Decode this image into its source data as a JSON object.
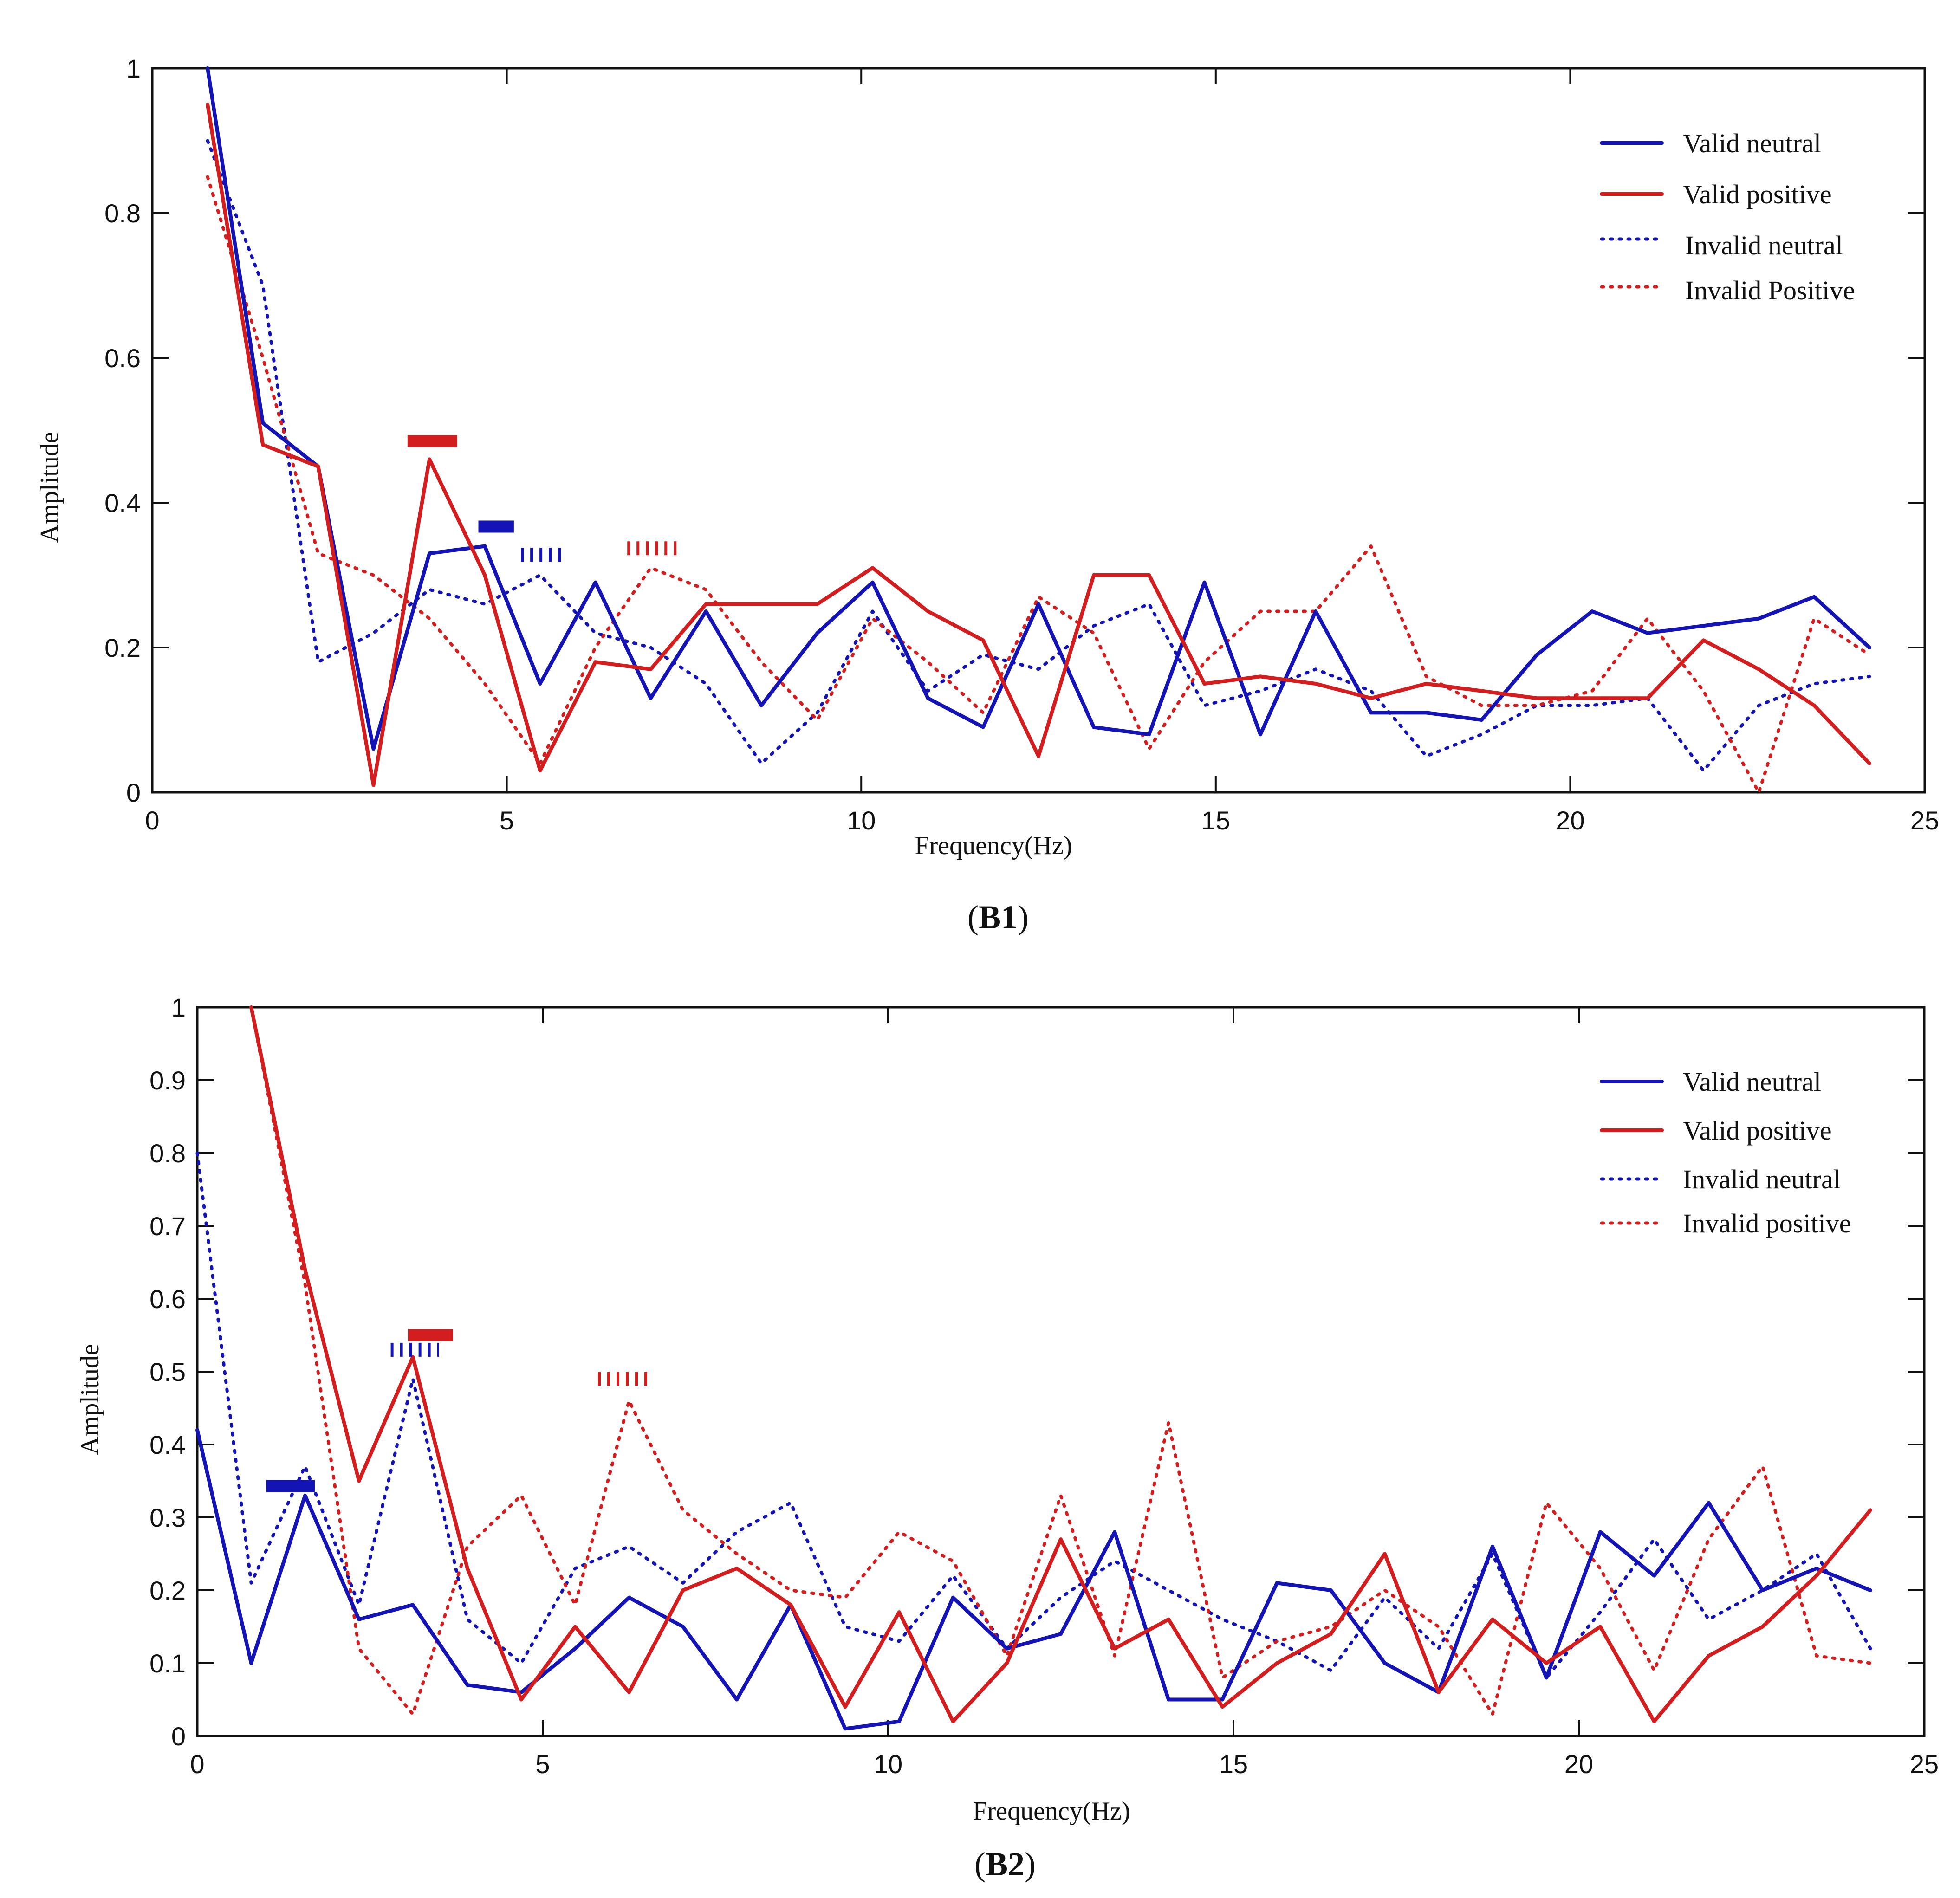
{
  "colors": {
    "blue": "#1414b4",
    "red": "#d21e1e",
    "axis": "#111111",
    "background": "#ffffff"
  },
  "chart_data": [
    {
      "type": "line",
      "panel": "B1",
      "caption": "B1",
      "xlabel": "Frequency(Hz)",
      "ylabel": "Amplitude",
      "xlim": [
        0,
        25
      ],
      "ylim": [
        0,
        1
      ],
      "xticks": [
        0,
        5,
        10,
        15,
        20,
        25
      ],
      "xtick_labels": [
        "0",
        "5",
        "10",
        "15",
        "20",
        "25"
      ],
      "yticks": [
        0,
        0.2,
        0.4,
        0.6,
        0.8,
        1
      ],
      "ytick_labels": [
        "0",
        "0.2",
        "0.4",
        "0.6",
        "0.8",
        "1"
      ],
      "grid": false,
      "legend_position": "top-right",
      "x": [
        0.78,
        1.56,
        2.34,
        3.12,
        3.91,
        4.69,
        5.47,
        6.25,
        7.03,
        7.81,
        8.59,
        9.38,
        10.16,
        10.94,
        11.72,
        12.5,
        13.28,
        14.06,
        14.84,
        15.63,
        16.41,
        17.19,
        17.97,
        18.75,
        19.53,
        20.31,
        21.09,
        21.88,
        22.66,
        23.44,
        24.22
      ],
      "series": [
        {
          "name": "Valid neutral",
          "color": "blue",
          "style": "solid",
          "values": [
            1.0,
            0.51,
            0.45,
            0.06,
            0.33,
            0.34,
            0.15,
            0.29,
            0.13,
            0.25,
            0.12,
            0.22,
            0.29,
            0.13,
            0.09,
            0.26,
            0.09,
            0.08,
            0.29,
            0.08,
            0.25,
            0.11,
            0.11,
            0.1,
            0.19,
            0.25,
            0.22,
            0.23,
            0.24,
            0.27,
            0.2
          ]
        },
        {
          "name": "Valid positive",
          "color": "red",
          "style": "solid",
          "values": [
            0.95,
            0.48,
            0.45,
            0.01,
            0.46,
            0.3,
            0.03,
            0.18,
            0.17,
            0.26,
            0.26,
            0.26,
            0.31,
            0.25,
            0.21,
            0.05,
            0.3,
            0.3,
            0.15,
            0.16,
            0.15,
            0.13,
            0.15,
            0.14,
            0.13,
            0.13,
            0.13,
            0.21,
            0.17,
            0.12,
            0.04
          ]
        },
        {
          "name": "Invalid neutral",
          "color": "blue",
          "style": "dotted",
          "values": [
            0.9,
            0.7,
            0.18,
            0.22,
            0.28,
            0.26,
            0.3,
            0.22,
            0.2,
            0.15,
            0.04,
            0.11,
            0.25,
            0.14,
            0.19,
            0.17,
            0.23,
            0.26,
            0.12,
            0.14,
            0.17,
            0.14,
            0.05,
            0.08,
            0.12,
            0.12,
            0.13,
            0.03,
            0.12,
            0.15,
            0.16
          ]
        },
        {
          "name": "Invalid Positive",
          "color": "red",
          "style": "dotted",
          "values": [
            0.85,
            0.6,
            0.33,
            0.3,
            0.24,
            0.15,
            0.04,
            0.2,
            0.31,
            0.28,
            0.18,
            0.1,
            0.24,
            0.18,
            0.11,
            0.27,
            0.22,
            0.06,
            0.18,
            0.25,
            0.25,
            0.34,
            0.16,
            0.12,
            0.12,
            0.14,
            0.24,
            0.14,
            0.0,
            0.24,
            0.19
          ]
        }
      ],
      "markers": [
        {
          "series": "Valid positive",
          "style": "solid",
          "x_range": [
            3.6,
            4.3
          ],
          "y": 0.485
        },
        {
          "series": "Valid neutral",
          "style": "solid",
          "x_range": [
            4.6,
            5.1
          ],
          "y": 0.367
        },
        {
          "series": "Invalid neutral",
          "style": "dashed",
          "x_range": [
            5.2,
            5.8
          ],
          "y": 0.328
        },
        {
          "series": "Invalid Positive",
          "style": "dashed",
          "x_range": [
            6.7,
            7.4
          ],
          "y": 0.337
        }
      ]
    },
    {
      "type": "line",
      "panel": "B2",
      "caption": "B2",
      "xlabel": "Frequency(Hz)",
      "ylabel": "Amplitude",
      "xlim": [
        0,
        25
      ],
      "ylim": [
        0,
        1
      ],
      "xticks": [
        0,
        5,
        10,
        15,
        20,
        25
      ],
      "xtick_labels": [
        "0",
        "5",
        "10",
        "15",
        "20",
        "25"
      ],
      "yticks": [
        0,
        0.1,
        0.2,
        0.3,
        0.4,
        0.5,
        0.6,
        0.7,
        0.8,
        0.9,
        1
      ],
      "ytick_labels": [
        "0",
        "0.1",
        "0.2",
        "0.3",
        "0.4",
        "0.5",
        "0.6",
        "0.7",
        "0.8",
        "0.9",
        "1"
      ],
      "grid": false,
      "legend_position": "top-right",
      "x": [
        0,
        0.78,
        1.56,
        2.34,
        3.12,
        3.91,
        4.69,
        5.47,
        6.25,
        7.03,
        7.81,
        8.59,
        9.38,
        10.16,
        10.94,
        11.72,
        12.5,
        13.28,
        14.06,
        14.84,
        15.63,
        16.41,
        17.19,
        17.97,
        18.75,
        19.53,
        20.31,
        21.09,
        21.88,
        22.66,
        23.44,
        24.22
      ],
      "series": [
        {
          "name": "Valid neutral",
          "color": "blue",
          "style": "solid",
          "values": [
            0.42,
            0.1,
            0.33,
            0.16,
            0.18,
            0.07,
            0.06,
            0.12,
            0.19,
            0.15,
            0.05,
            0.18,
            0.01,
            0.02,
            0.19,
            0.12,
            0.14,
            0.28,
            0.05,
            0.05,
            0.21,
            0.2,
            0.1,
            0.06,
            0.26,
            0.08,
            0.28,
            0.22,
            0.32,
            0.2,
            0.23,
            0.2
          ]
        },
        {
          "name": "Valid positive",
          "color": "red",
          "style": "solid",
          "values": [
            null,
            1.0,
            0.64,
            0.35,
            0.52,
            0.23,
            0.05,
            0.15,
            0.06,
            0.2,
            0.23,
            0.18,
            0.04,
            0.17,
            0.02,
            0.1,
            0.27,
            0.12,
            0.16,
            0.04,
            0.1,
            0.14,
            0.25,
            0.06,
            0.16,
            0.1,
            0.15,
            0.02,
            0.11,
            0.15,
            0.22,
            0.31
          ]
        },
        {
          "name": "Invalid neutral",
          "color": "blue",
          "style": "dotted",
          "values": [
            0.8,
            0.21,
            0.37,
            0.18,
            0.49,
            0.16,
            0.1,
            0.23,
            0.26,
            0.21,
            0.28,
            0.32,
            0.15,
            0.13,
            0.22,
            0.12,
            0.19,
            0.24,
            0.2,
            0.16,
            0.13,
            0.09,
            0.19,
            0.12,
            0.25,
            0.08,
            0.17,
            0.27,
            0.16,
            0.2,
            0.25,
            0.12
          ]
        },
        {
          "name": "Invalid positive",
          "color": "red",
          "style": "dotted",
          "values": [
            null,
            1.0,
            0.62,
            0.12,
            0.03,
            0.26,
            0.33,
            0.18,
            0.46,
            0.31,
            0.25,
            0.2,
            0.19,
            0.28,
            0.24,
            0.11,
            0.33,
            0.11,
            0.43,
            0.08,
            0.13,
            0.15,
            0.2,
            0.15,
            0.03,
            0.32,
            0.23,
            0.09,
            0.27,
            0.37,
            0.11,
            0.1
          ]
        }
      ],
      "markers": [
        {
          "series": "Valid neutral",
          "style": "solid",
          "x_range": [
            1.0,
            1.7
          ],
          "y": 0.343
        },
        {
          "series": "Invalid neutral",
          "style": "dashed",
          "x_range": [
            2.8,
            3.5
          ],
          "y": 0.53
        },
        {
          "series": "Valid positive",
          "style": "solid",
          "x_range": [
            3.05,
            3.7
          ],
          "y": 0.55
        },
        {
          "series": "Invalid positive",
          "style": "dashed",
          "x_range": [
            5.8,
            6.6
          ],
          "y": 0.49
        }
      ]
    }
  ]
}
